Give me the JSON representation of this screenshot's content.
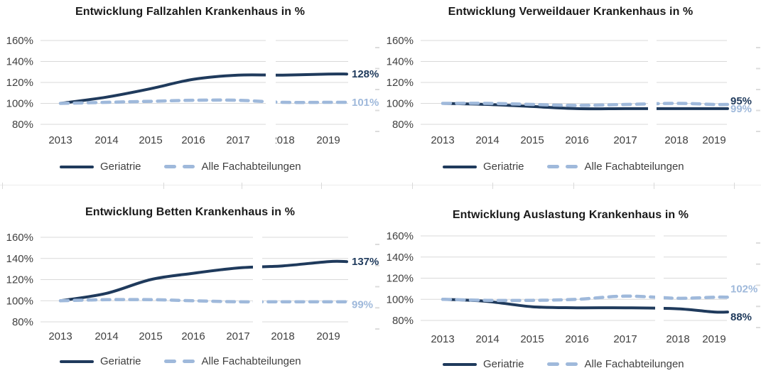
{
  "colors": {
    "geriatrie": "#1F3A5C",
    "alle_fachabteilungen": "#9FB9DB",
    "gridline": "#D9D9D9",
    "axis_text": "#404040",
    "title_text": "#1A1A1A"
  },
  "chart_data": [
    {
      "type": "line",
      "title": "Entwicklung Fallzahlen Krankenhaus in %",
      "categories": [
        "2013",
        "2014",
        "2015",
        "2016",
        "2017",
        "2018",
        "2019"
      ],
      "yticks": [
        "160%",
        "140%",
        "120%",
        "100%",
        "80%"
      ],
      "ylim": [
        80,
        160
      ],
      "grid": true,
      "legend_position": "bottom",
      "series": [
        {
          "name": "Geriatrie",
          "style": "solid",
          "color": "#1F3A5C",
          "values": [
            100,
            106,
            114,
            123,
            127,
            127,
            128
          ],
          "end_label": "128%"
        },
        {
          "name": "Alle Fachabteilungen",
          "style": "dashed",
          "color": "#9FB9DB",
          "values": [
            100,
            101,
            102,
            103,
            103,
            101,
            101
          ],
          "end_label": "101%"
        }
      ]
    },
    {
      "type": "line",
      "title": "Entwicklung Verweildauer Krankenhaus in %",
      "categories": [
        "2013",
        "2014",
        "2015",
        "2016",
        "2017",
        "2018",
        "2019"
      ],
      "yticks": [
        "160%",
        "140%",
        "120%",
        "100%",
        "80%"
      ],
      "ylim": [
        80,
        160
      ],
      "grid": true,
      "legend_position": "bottom",
      "series": [
        {
          "name": "Geriatrie",
          "style": "solid",
          "color": "#1F3A5C",
          "values": [
            100,
            99,
            97,
            95,
            95,
            95,
            95
          ],
          "end_label": "95%"
        },
        {
          "name": "Alle Fachabteilungen",
          "style": "dashed",
          "color": "#9FB9DB",
          "values": [
            100,
            100,
            99,
            98,
            99,
            100,
            99
          ],
          "end_label": "99%"
        }
      ]
    },
    {
      "type": "line",
      "title": "Entwicklung Betten Krankenhaus in %",
      "categories": [
        "2013",
        "2014",
        "2015",
        "2016",
        "2017",
        "2018",
        "2019"
      ],
      "yticks": [
        "160%",
        "140%",
        "120%",
        "100%",
        "80%"
      ],
      "ylim": [
        80,
        160
      ],
      "grid": true,
      "legend_position": "bottom",
      "series": [
        {
          "name": "Geriatrie",
          "style": "solid",
          "color": "#1F3A5C",
          "values": [
            100,
            107,
            120,
            126,
            131,
            133,
            137
          ],
          "end_label": "137%"
        },
        {
          "name": "Alle Fachabteilungen",
          "style": "dashed",
          "color": "#9FB9DB",
          "values": [
            100,
            101,
            101,
            100,
            99,
            99,
            99
          ],
          "end_label": "99%"
        }
      ]
    },
    {
      "type": "line",
      "title": "Entwicklung Auslastung Krankenhaus in %",
      "categories": [
        "2013",
        "2014",
        "2015",
        "2016",
        "2017",
        "2018",
        "2019"
      ],
      "yticks": [
        "160%",
        "140%",
        "120%",
        "100%",
        "80%"
      ],
      "ylim": [
        80,
        160
      ],
      "grid": true,
      "legend_position": "bottom",
      "series": [
        {
          "name": "Geriatrie",
          "style": "solid",
          "color": "#1F3A5C",
          "values": [
            100,
            98,
            93,
            92,
            92,
            91,
            88
          ],
          "end_label": "88%"
        },
        {
          "name": "Alle Fachabteilungen",
          "style": "dashed",
          "color": "#9FB9DB",
          "values": [
            100,
            99,
            99,
            100,
            103,
            101,
            102
          ],
          "end_label": "102%"
        }
      ]
    }
  ]
}
